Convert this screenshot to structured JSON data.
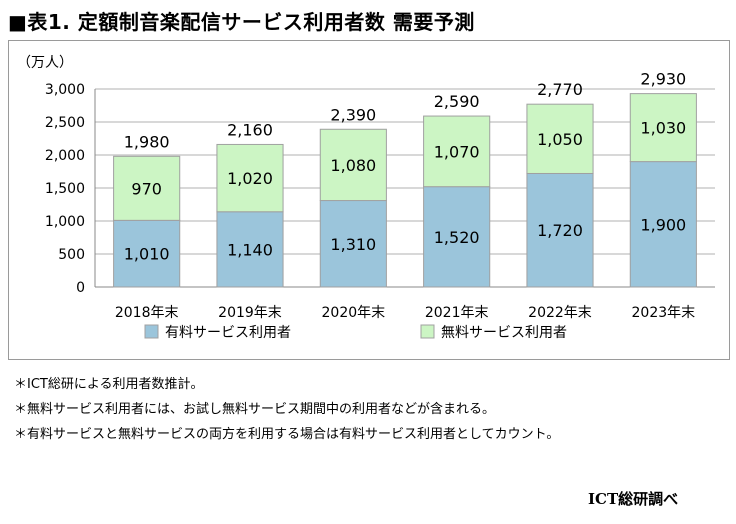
{
  "title": "■表1. 定額制音楽配信サービス利用者数 需要予測",
  "chart_data": {
    "type": "bar",
    "stacked": true,
    "unit_label": "（万人）",
    "categories": [
      "2018年末",
      "2019年末",
      "2020年末",
      "2021年末",
      "2022年末",
      "2023年末"
    ],
    "series": [
      {
        "name": "有料サービス利用者",
        "values": [
          1010,
          1140,
          1310,
          1520,
          1720,
          1900
        ],
        "color": "#9bc5db"
      },
      {
        "name": "無料サービス利用者",
        "values": [
          970,
          1020,
          1080,
          1070,
          1050,
          1030
        ],
        "color": "#ccf5c4"
      }
    ],
    "totals": [
      1980,
      2160,
      2390,
      2590,
      2770,
      2930
    ],
    "ylim": [
      0,
      3000
    ],
    "yticks": [
      0,
      500,
      1000,
      1500,
      2000,
      2500,
      3000
    ],
    "grid": true,
    "legend_position": "bottom"
  },
  "notes": [
    "＊ICT総研による利用者数推計。",
    "＊無料サービス利用者には、お試し無料サービス期間中の利用者などが含まれる。",
    "＊有料サービスと無料サービスの両方を利用する場合は有料サービス利用者としてカウント。"
  ],
  "source": "ICT総研調べ"
}
